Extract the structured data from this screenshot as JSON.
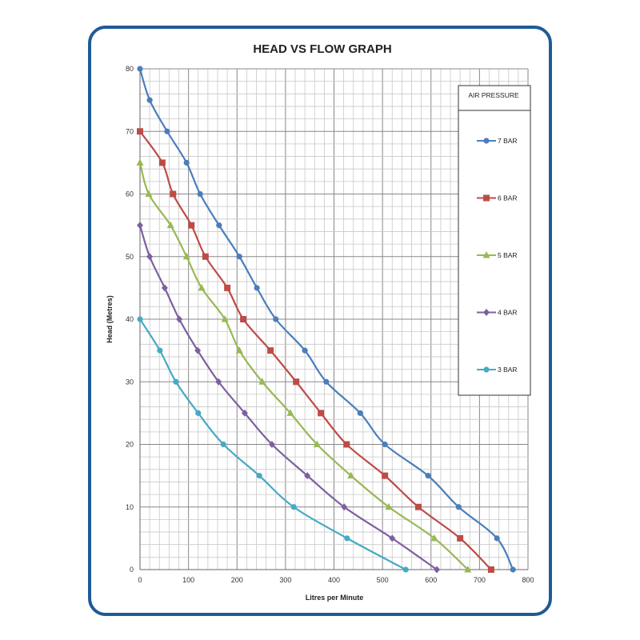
{
  "chart_data": {
    "type": "line",
    "title": "HEAD VS FLOW GRAPH",
    "xlabel": "Litres per Minute",
    "ylabel": "Head  (Metres)",
    "xlim": [
      0,
      800
    ],
    "ylim": [
      0,
      80
    ],
    "x_ticks": [
      0,
      100,
      200,
      300,
      400,
      500,
      600,
      700,
      800
    ],
    "y_ticks": [
      0,
      10,
      20,
      30,
      40,
      50,
      60,
      70,
      80
    ],
    "grid": true,
    "legend": {
      "title": "AIR PRESSURE",
      "placement": "right"
    },
    "series": [
      {
        "name": "7 BAR",
        "color": "#4a7ebb",
        "marker": "circle",
        "points": [
          [
            0,
            80
          ],
          [
            20,
            75
          ],
          [
            56,
            70
          ],
          [
            96,
            65
          ],
          [
            124,
            60
          ],
          [
            163,
            55
          ],
          [
            205,
            50
          ],
          [
            241,
            45
          ],
          [
            280,
            40
          ],
          [
            340,
            35
          ],
          [
            384,
            30
          ],
          [
            454,
            25
          ],
          [
            505,
            20
          ],
          [
            594,
            15
          ],
          [
            657,
            10
          ],
          [
            736,
            5
          ],
          [
            769,
            0
          ]
        ]
      },
      {
        "name": "6 BAR",
        "color": "#be4b48",
        "marker": "square",
        "points": [
          [
            0,
            70
          ],
          [
            46,
            65
          ],
          [
            68,
            60
          ],
          [
            106,
            55
          ],
          [
            135,
            50
          ],
          [
            180,
            45
          ],
          [
            213,
            40
          ],
          [
            269,
            35
          ],
          [
            322,
            30
          ],
          [
            373,
            25
          ],
          [
            426,
            20
          ],
          [
            505,
            15
          ],
          [
            574,
            10
          ],
          [
            660,
            5
          ],
          [
            724,
            0
          ]
        ]
      },
      {
        "name": "5 BAR",
        "color": "#98b954",
        "marker": "triangle",
        "points": [
          [
            0,
            65
          ],
          [
            18,
            60
          ],
          [
            63,
            55
          ],
          [
            96,
            50
          ],
          [
            127,
            45
          ],
          [
            175,
            40
          ],
          [
            205,
            35
          ],
          [
            252,
            30
          ],
          [
            310,
            25
          ],
          [
            365,
            20
          ],
          [
            435,
            15
          ],
          [
            513,
            10
          ],
          [
            607,
            5
          ],
          [
            676,
            0
          ]
        ]
      },
      {
        "name": "4 BAR",
        "color": "#7d60a0",
        "marker": "diamond",
        "points": [
          [
            0,
            55
          ],
          [
            20,
            50
          ],
          [
            51,
            45
          ],
          [
            81,
            40
          ],
          [
            119,
            35
          ],
          [
            162,
            30
          ],
          [
            216,
            25
          ],
          [
            272,
            20
          ],
          [
            345,
            15
          ],
          [
            421,
            10
          ],
          [
            520,
            5
          ],
          [
            612,
            0
          ]
        ]
      },
      {
        "name": "3 BAR",
        "color": "#46aac5",
        "marker": "circle",
        "points": [
          [
            0,
            40
          ],
          [
            41,
            35
          ],
          [
            74,
            30
          ],
          [
            120,
            25
          ],
          [
            172,
            20
          ],
          [
            246,
            15
          ],
          [
            317,
            10
          ],
          [
            427,
            5
          ],
          [
            548,
            0
          ]
        ]
      }
    ]
  }
}
